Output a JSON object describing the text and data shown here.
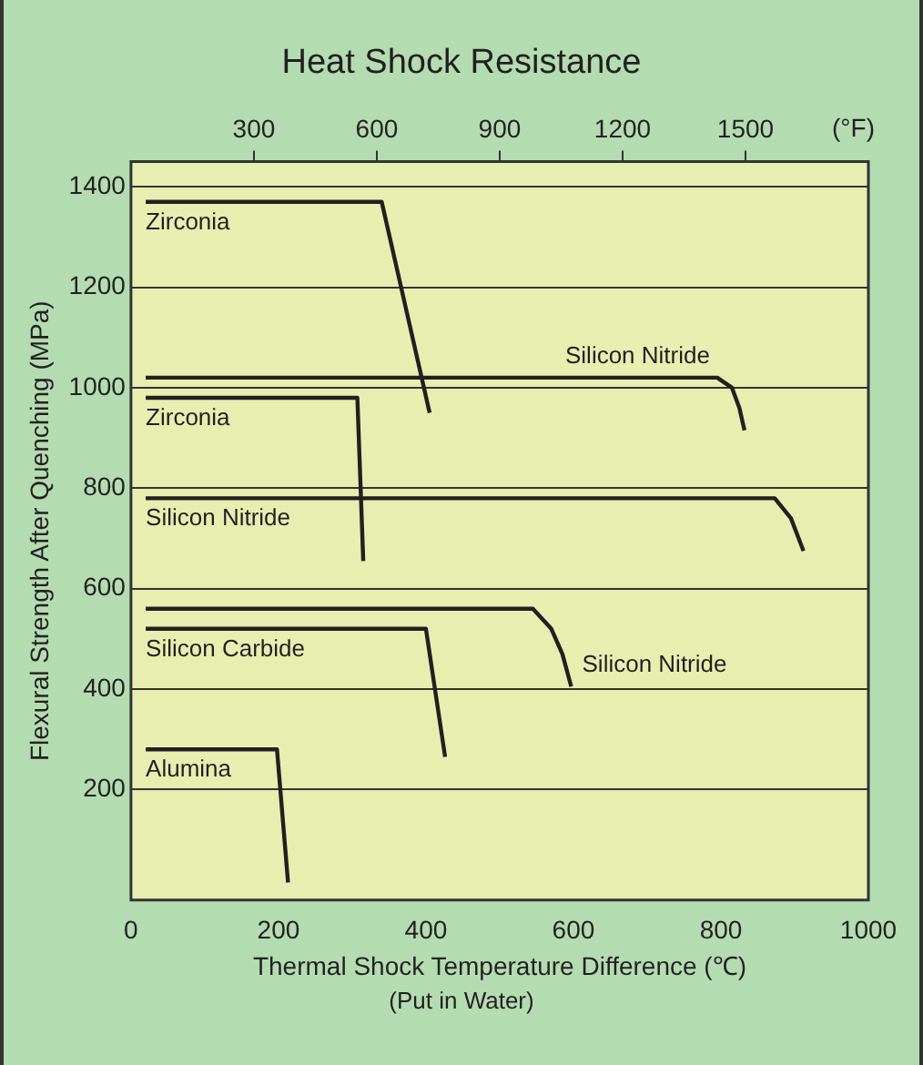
{
  "chart_data": {
    "type": "line",
    "title": "Heat Shock Resistance",
    "xlabel": "Thermal Shock Temperature Difference (℃)",
    "ylabel": "Flexural Strength After Quenching (MPa)",
    "x2label": "(°F)",
    "xlim": [
      0,
      1000
    ],
    "xticks": [
      0,
      200,
      400,
      600,
      800,
      1000
    ],
    "x2lim": [
      0,
      1800
    ],
    "x2ticks": [
      300,
      600,
      900,
      1200,
      1500
    ],
    "ylim": [
      -20,
      1450
    ],
    "yticks": [
      200,
      400,
      600,
      800,
      1000,
      1200,
      1400
    ],
    "grid": "y",
    "legend": false,
    "marker": "none",
    "line_style": "solid",
    "series": [
      {
        "name": "Zirconia",
        "color": "#231f20",
        "x": [
          20,
          340,
          405
        ],
        "values": [
          1370,
          1370,
          950
        ]
      },
      {
        "name": "Silicon Nitride",
        "color": "#231f20",
        "x": [
          20,
          795,
          815,
          825,
          832
        ],
        "values": [
          1020,
          1020,
          1000,
          960,
          915
        ]
      },
      {
        "name": "Zirconia",
        "color": "#231f20",
        "x": [
          20,
          307,
          315
        ],
        "values": [
          980,
          980,
          655
        ]
      },
      {
        "name": "Silicon Nitride",
        "color": "#231f20",
        "x": [
          20,
          873,
          895,
          912
        ],
        "values": [
          780,
          780,
          740,
          675
        ]
      },
      {
        "name": "Silicon Nitride",
        "color": "#231f20",
        "x": [
          20,
          545,
          570,
          585,
          597
        ],
        "values": [
          560,
          560,
          520,
          470,
          405
        ]
      },
      {
        "name": "Silicon Carbide",
        "color": "#231f20",
        "x": [
          20,
          400,
          426
        ],
        "values": [
          520,
          520,
          265
        ]
      },
      {
        "name": "Alumina",
        "color": "#231f20",
        "x": [
          20,
          198,
          213
        ],
        "values": [
          280,
          280,
          15
        ]
      }
    ],
    "annotations": [
      "(Put in Water)"
    ]
  }
}
